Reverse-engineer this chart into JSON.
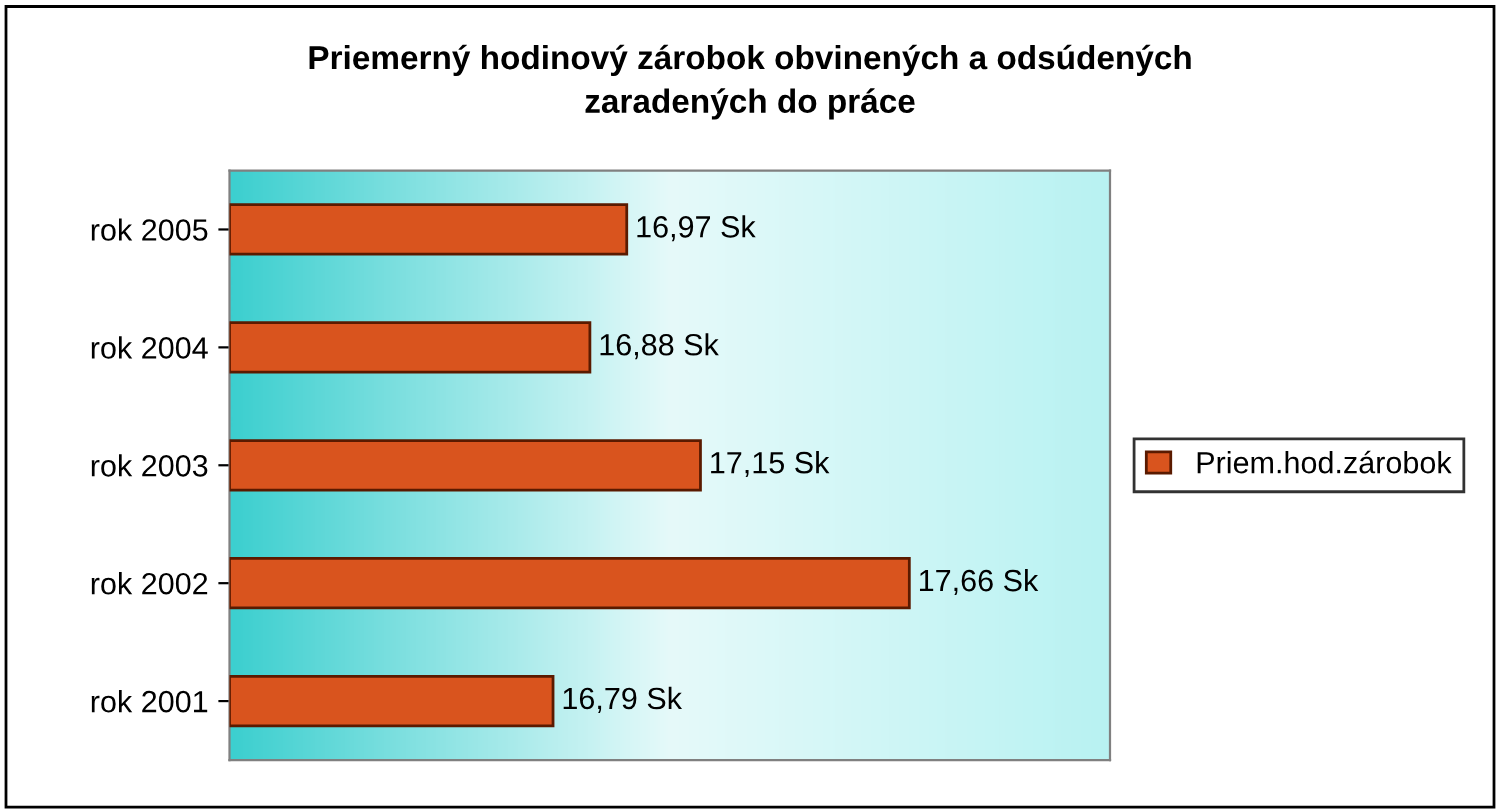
{
  "chart_data": {
    "type": "bar",
    "orientation": "horizontal",
    "title": "Priemerný hodinový zárobok obvinených a odsúdených\nzaradených do práce",
    "categories": [
      "rok 2005",
      "rok 2004",
      "rok 2003",
      "rok 2002",
      "rok 2001"
    ],
    "series": [
      {
        "name": "Priem.hod.zárobok",
        "color": "#d9541e",
        "values": [
          16.97,
          16.88,
          17.15,
          17.66,
          16.79
        ],
        "value_labels": [
          "16,97 Sk",
          "16,88 Sk",
          "17,15 Sk",
          "17,66 Sk",
          "16,79 Sk"
        ]
      }
    ],
    "xlim": [
      16,
      18.15
    ],
    "tick_labels": "y",
    "grid": false,
    "legend": "right"
  }
}
